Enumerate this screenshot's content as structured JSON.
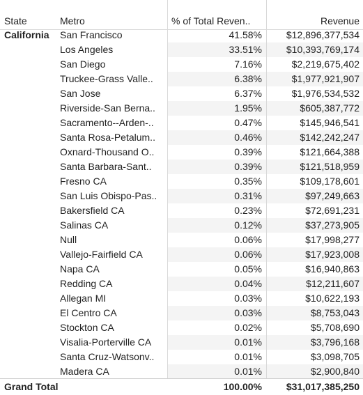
{
  "header": {
    "state": "State",
    "metro": "Metro",
    "pct": "% of Total Reven..",
    "revenue": "Revenue"
  },
  "state": "California",
  "rows": [
    {
      "metro": "San Francisco",
      "pct": "41.58%",
      "revenue": "$12,896,377,534"
    },
    {
      "metro": "Los Angeles",
      "pct": "33.51%",
      "revenue": "$10,393,769,174"
    },
    {
      "metro": "San Diego",
      "pct": "7.16%",
      "revenue": "$2,219,675,402"
    },
    {
      "metro": "Truckee-Grass Valle..",
      "pct": "6.38%",
      "revenue": "$1,977,921,907"
    },
    {
      "metro": "San Jose",
      "pct": "6.37%",
      "revenue": "$1,976,534,532"
    },
    {
      "metro": "Riverside-San Berna..",
      "pct": "1.95%",
      "revenue": "$605,387,772"
    },
    {
      "metro": "Sacramento--Arden-..",
      "pct": "0.47%",
      "revenue": "$145,946,541"
    },
    {
      "metro": "Santa Rosa-Petalum..",
      "pct": "0.46%",
      "revenue": "$142,242,247"
    },
    {
      "metro": "Oxnard-Thousand O..",
      "pct": "0.39%",
      "revenue": "$121,664,388"
    },
    {
      "metro": "Santa Barbara-Sant..",
      "pct": "0.39%",
      "revenue": "$121,518,959"
    },
    {
      "metro": "Fresno CA",
      "pct": "0.35%",
      "revenue": "$109,178,601"
    },
    {
      "metro": "San Luis Obispo-Pas..",
      "pct": "0.31%",
      "revenue": "$97,249,663"
    },
    {
      "metro": "Bakersfield CA",
      "pct": "0.23%",
      "revenue": "$72,691,231"
    },
    {
      "metro": "Salinas CA",
      "pct": "0.12%",
      "revenue": "$37,273,905"
    },
    {
      "metro": "Null",
      "pct": "0.06%",
      "revenue": "$17,998,277"
    },
    {
      "metro": "Vallejo-Fairfield CA",
      "pct": "0.06%",
      "revenue": "$17,923,008"
    },
    {
      "metro": "Napa CA",
      "pct": "0.05%",
      "revenue": "$16,940,863"
    },
    {
      "metro": "Redding CA",
      "pct": "0.04%",
      "revenue": "$12,211,607"
    },
    {
      "metro": "Allegan MI",
      "pct": "0.03%",
      "revenue": "$10,622,193"
    },
    {
      "metro": "El Centro CA",
      "pct": "0.03%",
      "revenue": "$8,753,043"
    },
    {
      "metro": "Stockton CA",
      "pct": "0.02%",
      "revenue": "$5,708,690"
    },
    {
      "metro": "Visalia-Porterville CA",
      "pct": "0.01%",
      "revenue": "$3,796,168"
    },
    {
      "metro": "Santa Cruz-Watsonv..",
      "pct": "0.01%",
      "revenue": "$3,098,705"
    },
    {
      "metro": "Madera CA",
      "pct": "0.01%",
      "revenue": "$2,900,840"
    }
  ],
  "grand_total": {
    "label": "Grand Total",
    "pct": "100.00%",
    "revenue": "$31,017,385,250"
  }
}
